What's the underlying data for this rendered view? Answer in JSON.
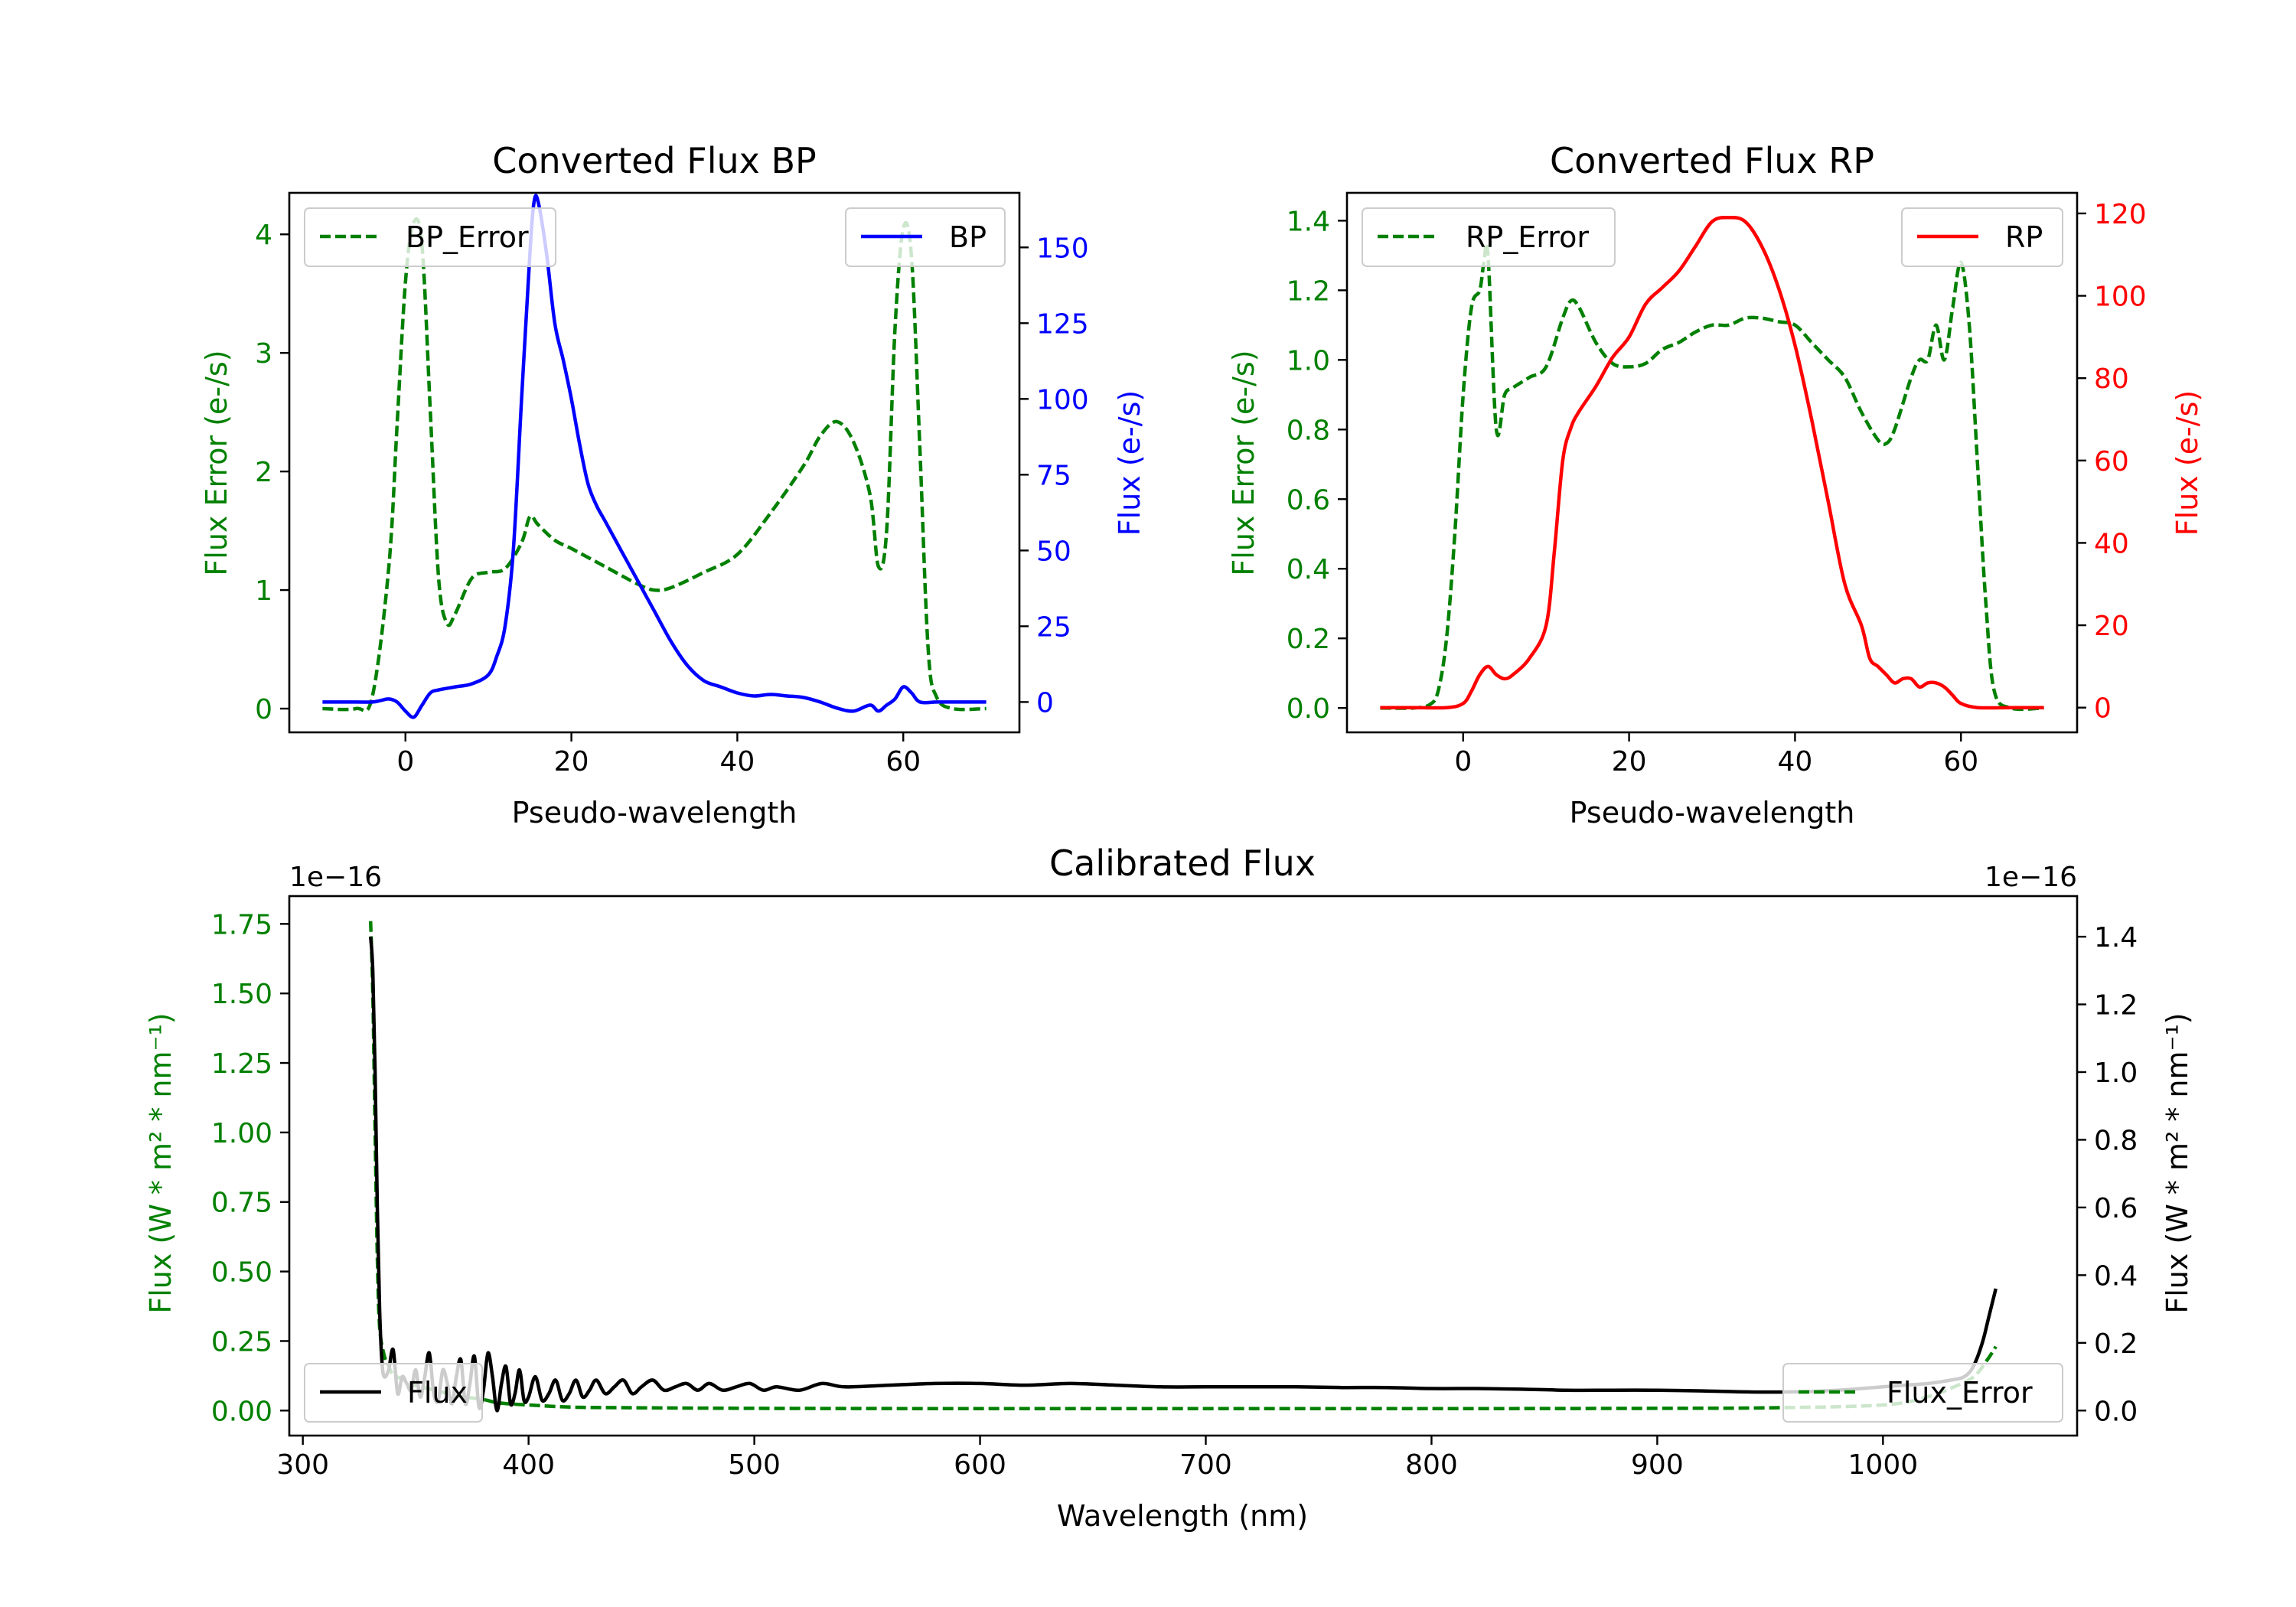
{
  "colors": {
    "error": "#008000",
    "bp": "#0000ff",
    "rp": "#ff0000",
    "flux": "#000000"
  },
  "chart_data": [
    {
      "id": "bp",
      "type": "line",
      "title": "Converted Flux BP",
      "xlabel": "Pseudo-wavelength",
      "ylabel_left": "Flux Error (e-/s)",
      "ylabel_right": "Flux (e-/s)",
      "xlim": [
        -14,
        74
      ],
      "ylim_left": [
        -0.2,
        4.35
      ],
      "ylim_right": [
        -10,
        168
      ],
      "xticks": [
        0,
        20,
        40,
        60
      ],
      "yticks_left": [
        0,
        1,
        2,
        3,
        4
      ],
      "yticks_right": [
        0,
        25,
        50,
        75,
        100,
        125,
        150
      ],
      "legend_left": "BP_Error",
      "legend_right": "BP",
      "series": [
        {
          "name": "BP_Error",
          "axis": "left",
          "style": "dashed",
          "color": "error",
          "x": [
            -10,
            -6,
            -4,
            -2,
            -1,
            0,
            1,
            2,
            3,
            4,
            5,
            6,
            8,
            10,
            12,
            14,
            15,
            16,
            18,
            20,
            24,
            28,
            30,
            32,
            36,
            40,
            44,
            48,
            50,
            52,
            54,
            56,
            57,
            58,
            59,
            60,
            61,
            62,
            63,
            64,
            66,
            70
          ],
          "y": [
            0,
            0,
            0.1,
            1.2,
            2.4,
            3.6,
            4.1,
            3.9,
            2.5,
            1.1,
            0.72,
            0.8,
            1.1,
            1.15,
            1.18,
            1.4,
            1.62,
            1.55,
            1.42,
            1.35,
            1.2,
            1.05,
            1.0,
            1.02,
            1.15,
            1.3,
            1.65,
            2.05,
            2.3,
            2.42,
            2.25,
            1.8,
            1.2,
            1.5,
            3.2,
            4.05,
            3.8,
            2.2,
            0.5,
            0.1,
            0,
            0
          ]
        },
        {
          "name": "BP",
          "axis": "right",
          "style": "solid",
          "color": "bp",
          "x": [
            -10,
            -6,
            -4,
            -3,
            -2,
            -1,
            0,
            1,
            2,
            3,
            4,
            6,
            8,
            10,
            11,
            12,
            13,
            14,
            15,
            15.5,
            16,
            17,
            18,
            19,
            20,
            21,
            22,
            23,
            24,
            26,
            28,
            30,
            32,
            34,
            36,
            38,
            40,
            42,
            44,
            46,
            48,
            50,
            52,
            54,
            56,
            57,
            58,
            59,
            60,
            61,
            62,
            64,
            66,
            70
          ],
          "y": [
            0,
            0,
            0,
            0.5,
            1,
            0,
            -3,
            -5,
            -1,
            3,
            4,
            5,
            6,
            9,
            15,
            25,
            50,
            100,
            148,
            165,
            165,
            148,
            125,
            113,
            100,
            85,
            72,
            65,
            60,
            50,
            40,
            30,
            20,
            12,
            7,
            5,
            3,
            2,
            2.5,
            2,
            1.5,
            0,
            -2,
            -3,
            -1,
            -3,
            -1,
            1,
            5,
            3,
            0,
            0,
            0,
            0
          ]
        }
      ]
    },
    {
      "id": "rp",
      "type": "line",
      "title": "Converted Flux RP",
      "xlabel": "Pseudo-wavelength",
      "ylabel_left": "Flux Error (e-/s)",
      "ylabel_right": "Flux (e-/s)",
      "xlim": [
        -14,
        74
      ],
      "ylim_left": [
        -0.07,
        1.48
      ],
      "ylim_right": [
        -6,
        125
      ],
      "xticks": [
        0,
        20,
        40,
        60
      ],
      "yticks_left": [
        0.0,
        0.2,
        0.4,
        0.6,
        0.8,
        1.0,
        1.2,
        1.4
      ],
      "yticks_right": [
        0,
        20,
        40,
        60,
        80,
        100,
        120
      ],
      "legend_left": "RP_Error",
      "legend_right": "RP",
      "series": [
        {
          "name": "RP_Error",
          "axis": "left",
          "style": "dashed",
          "color": "error",
          "x": [
            -10,
            -6,
            -4,
            -3,
            -2,
            -1,
            0,
            1,
            2,
            2.5,
            3,
            4,
            5,
            6,
            8,
            10,
            12,
            13,
            14,
            16,
            18,
            20,
            22,
            24,
            26,
            28,
            30,
            32,
            34,
            36,
            38,
            40,
            42,
            44,
            46,
            48,
            50,
            51,
            52,
            54,
            55,
            56,
            57,
            58,
            59,
            60,
            61,
            62,
            63,
            64,
            66,
            70
          ],
          "y": [
            0,
            0,
            0.01,
            0.05,
            0.2,
            0.5,
            0.9,
            1.15,
            1.2,
            1.28,
            1.3,
            0.8,
            0.9,
            0.92,
            0.95,
            0.98,
            1.12,
            1.17,
            1.15,
            1.05,
            0.99,
            0.98,
            0.99,
            1.03,
            1.05,
            1.08,
            1.1,
            1.1,
            1.12,
            1.12,
            1.11,
            1.1,
            1.05,
            1.0,
            0.95,
            0.85,
            0.77,
            0.76,
            0.8,
            0.95,
            1.0,
            1.0,
            1.1,
            1.0,
            1.15,
            1.28,
            1.1,
            0.7,
            0.3,
            0.05,
            0,
            0
          ]
        },
        {
          "name": "RP",
          "axis": "right",
          "style": "solid",
          "color": "rp",
          "x": [
            -10,
            -6,
            -2,
            0,
            1,
            2,
            3,
            4,
            5,
            6,
            8,
            10,
            11,
            12,
            13,
            14,
            16,
            18,
            20,
            22,
            24,
            26,
            28,
            30,
            32,
            34,
            36,
            38,
            40,
            42,
            44,
            46,
            48,
            49,
            50,
            51,
            52,
            53,
            54,
            55,
            56,
            57,
            58,
            59,
            60,
            62,
            66,
            70
          ],
          "y": [
            0,
            0,
            0,
            1,
            4,
            8,
            10,
            8,
            7,
            8,
            12,
            20,
            38,
            60,
            68,
            72,
            78,
            85,
            90,
            98,
            102,
            106,
            112,
            118,
            119,
            118,
            112,
            102,
            88,
            70,
            50,
            30,
            20,
            12,
            10,
            8,
            6,
            7,
            7,
            5,
            6,
            6,
            5,
            3,
            1,
            0,
            0,
            0
          ]
        }
      ]
    },
    {
      "id": "cal",
      "type": "line",
      "title": "Calibrated Flux",
      "xlabel": "Wavelength (nm)",
      "ylabel_left": "Flux (W * m² * nm⁻¹)",
      "ylabel_right": "Flux (W * m² * nm⁻¹)",
      "offset_left": "1e−16",
      "offset_right": "1e−16",
      "xlim": [
        294,
        1086
      ],
      "ylim_left": [
        -0.09,
        1.85
      ],
      "ylim_right": [
        -0.074,
        1.52
      ],
      "xticks": [
        300,
        400,
        500,
        600,
        700,
        800,
        900,
        1000
      ],
      "yticks_left": [
        0.0,
        0.25,
        0.5,
        0.75,
        1.0,
        1.25,
        1.5,
        1.75
      ],
      "yticks_right": [
        0.0,
        0.2,
        0.4,
        0.6,
        0.8,
        1.0,
        1.2,
        1.4
      ],
      "legend_left": "Flux",
      "legend_right": "Flux_Error",
      "series": [
        {
          "name": "Flux_Error",
          "axis": "left",
          "style": "dashed",
          "color": "error",
          "x": [
            330,
            331,
            332,
            333,
            334,
            336,
            338,
            340,
            345,
            350,
            355,
            360,
            365,
            370,
            375,
            380,
            385,
            390,
            400,
            420,
            450,
            500,
            600,
            700,
            800,
            900,
            950,
            1000,
            1020,
            1030,
            1040,
            1046,
            1050
          ],
          "y": [
            1.76,
            1.5,
            1.0,
            0.55,
            0.3,
            0.2,
            0.16,
            0.13,
            0.11,
            0.09,
            0.08,
            0.07,
            0.06,
            0.05,
            0.045,
            0.04,
            0.03,
            0.025,
            0.02,
            0.012,
            0.01,
            0.008,
            0.007,
            0.007,
            0.007,
            0.008,
            0.01,
            0.02,
            0.05,
            0.08,
            0.12,
            0.18,
            0.23
          ]
        },
        {
          "name": "Flux",
          "axis": "right",
          "style": "solid",
          "color": "flux",
          "x": [
            330,
            331,
            332,
            333,
            334,
            335,
            336,
            338,
            340,
            342,
            344,
            346,
            348,
            350,
            352,
            354,
            356,
            358,
            360,
            362,
            364,
            366,
            368,
            370,
            372,
            374,
            376,
            378,
            380,
            382,
            384,
            386,
            388,
            390,
            392,
            394,
            396,
            398,
            400,
            403,
            406,
            409,
            412,
            415,
            418,
            421,
            424,
            427,
            430,
            434,
            438,
            442,
            446,
            450,
            455,
            460,
            465,
            470,
            475,
            480,
            486,
            492,
            498,
            504,
            510,
            520,
            530,
            540,
            560,
            580,
            600,
            620,
            640,
            660,
            680,
            700,
            720,
            740,
            760,
            780,
            800,
            820,
            840,
            860,
            880,
            900,
            920,
            940,
            960,
            980,
            1000,
            1010,
            1020,
            1030,
            1036,
            1040,
            1044,
            1047,
            1050
          ],
          "y": [
            1.4,
            1.3,
            1.0,
            0.6,
            0.3,
            0.15,
            0.1,
            0.12,
            0.18,
            0.05,
            0.1,
            0.08,
            0.06,
            0.12,
            0.04,
            0.1,
            0.17,
            0.05,
            0.03,
            0.12,
            0.08,
            0.02,
            0.1,
            0.15,
            0.02,
            0.08,
            0.16,
            0.01,
            0.06,
            0.17,
            0.1,
            0.0,
            0.08,
            0.13,
            0.02,
            0.05,
            0.12,
            0.03,
            0.04,
            0.1,
            0.03,
            0.05,
            0.09,
            0.03,
            0.05,
            0.09,
            0.04,
            0.06,
            0.09,
            0.05,
            0.07,
            0.09,
            0.05,
            0.07,
            0.09,
            0.06,
            0.07,
            0.08,
            0.06,
            0.08,
            0.06,
            0.07,
            0.08,
            0.06,
            0.07,
            0.06,
            0.08,
            0.07,
            0.075,
            0.08,
            0.08,
            0.075,
            0.08,
            0.075,
            0.07,
            0.07,
            0.07,
            0.07,
            0.068,
            0.068,
            0.065,
            0.065,
            0.063,
            0.06,
            0.06,
            0.06,
            0.058,
            0.055,
            0.055,
            0.06,
            0.07,
            0.075,
            0.08,
            0.09,
            0.1,
            0.13,
            0.2,
            0.28,
            0.36
          ]
        }
      ]
    }
  ]
}
